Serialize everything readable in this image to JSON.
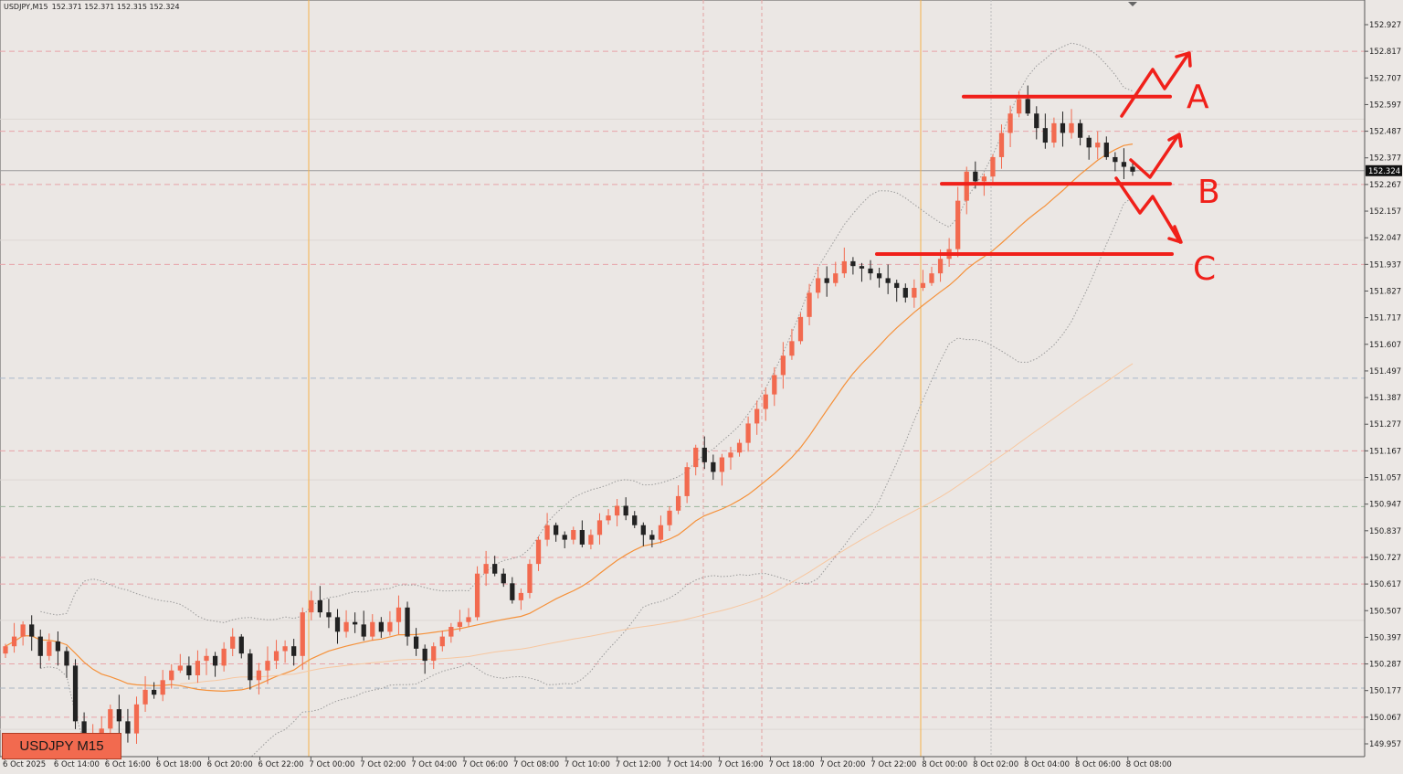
{
  "header": {
    "symbol_timeframe": "USDJPY,M15",
    "ohlc": "152.371 152.371 152.315 152.324"
  },
  "badge": {
    "label": "USDJPY M15"
  },
  "colors": {
    "background": "#ebe7e4",
    "bull": "#f26a4f",
    "bear": "#222222",
    "ma_fast": "#f5913a",
    "ma_slow": "#f7c7a0",
    "bands": "#9a9a9a",
    "annotation": "#f0201a",
    "current_price_bg": "#111111",
    "session_line": "#f5b24a"
  },
  "chart_data": {
    "type": "candlestick",
    "symbol": "USDJPY",
    "timeframe": "M15",
    "current_price": "152.324",
    "ylim": [
      149.957,
      152.927
    ],
    "y_ticks": [
      "152.927",
      "152.817",
      "152.707",
      "152.597",
      "152.487",
      "152.377",
      "152.267",
      "152.157",
      "152.047",
      "151.937",
      "151.827",
      "151.717",
      "151.607",
      "151.497",
      "151.387",
      "151.277",
      "151.167",
      "151.057",
      "150.947",
      "150.837",
      "150.727",
      "150.617",
      "150.507",
      "150.397",
      "150.287",
      "150.177",
      "150.067",
      "149.957"
    ],
    "x_ticks": [
      "6 Oct 2025",
      "6 Oct 14:00",
      "6 Oct 16:00",
      "6 Oct 18:00",
      "6 Oct 20:00",
      "6 Oct 22:00",
      "7 Oct 00:00",
      "7 Oct 02:00",
      "7 Oct 04:00",
      "7 Oct 06:00",
      "7 Oct 08:00",
      "7 Oct 10:00",
      "7 Oct 12:00",
      "7 Oct 14:00",
      "7 Oct 16:00",
      "7 Oct 18:00",
      "7 Oct 20:00",
      "7 Oct 22:00",
      "8 Oct 00:00",
      "8 Oct 02:00",
      "8 Oct 04:00",
      "8 Oct 06:00",
      "8 Oct 08:00"
    ],
    "close_path": [
      150.36,
      150.4,
      150.45,
      150.4,
      150.32,
      150.38,
      150.34,
      150.28,
      150.05,
      149.96,
      149.98,
      150.02,
      150.1,
      150.05,
      150.0,
      150.12,
      150.18,
      150.16,
      150.22,
      150.26,
      150.28,
      150.24,
      150.3,
      150.32,
      150.28,
      150.35,
      150.4,
      150.33,
      150.22,
      150.26,
      150.3,
      150.34,
      150.36,
      150.32,
      150.5,
      150.55,
      150.5,
      150.48,
      150.42,
      150.46,
      150.45,
      150.4,
      150.46,
      150.42,
      150.46,
      150.52,
      150.4,
      150.35,
      150.3,
      150.36,
      150.4,
      150.44,
      150.46,
      150.48,
      150.66,
      150.7,
      150.66,
      150.62,
      150.55,
      150.58,
      150.7,
      150.8,
      150.86,
      150.82,
      150.8,
      150.84,
      150.78,
      150.82,
      150.88,
      150.9,
      150.94,
      150.9,
      150.86,
      150.82,
      150.8,
      150.86,
      150.92,
      150.98,
      151.1,
      151.18,
      151.12,
      151.08,
      151.14,
      151.16,
      151.2,
      151.28,
      151.34,
      151.4,
      151.48,
      151.56,
      151.62,
      151.72,
      151.82,
      151.88,
      151.86,
      151.9,
      151.95,
      151.93,
      151.92,
      151.9,
      151.88,
      151.86,
      151.84,
      151.8,
      151.84,
      151.86,
      151.9,
      151.96,
      152.0,
      152.2,
      152.32,
      152.28,
      152.3,
      152.38,
      152.48,
      152.56,
      152.62,
      152.56,
      152.5,
      152.44,
      152.52,
      152.48,
      152.52,
      152.46,
      152.42,
      152.44,
      152.38,
      152.36,
      152.34,
      152.32
    ],
    "overlays": [
      "Bollinger Bands",
      "Moving Average (fast)",
      "Moving Average (slow)"
    ],
    "levels": [
      {
        "name": "A",
        "price": 152.63
      },
      {
        "name": "B",
        "price": 152.27
      },
      {
        "name": "C",
        "price": 151.98
      }
    ]
  }
}
